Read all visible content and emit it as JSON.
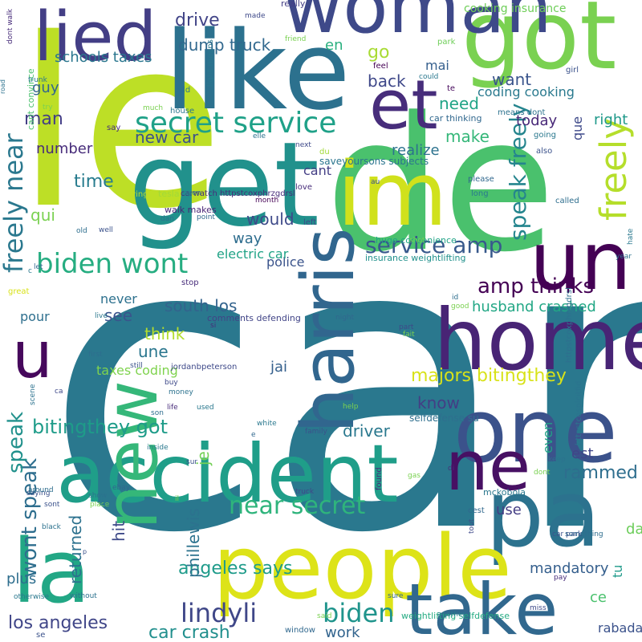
{
  "words": [
    {
      "t": "car",
      "c": "#2a788e"
    },
    {
      "t": "de",
      "c": "#4ac16d"
    },
    {
      "t": "le",
      "c": "#bddf26"
    },
    {
      "t": "get",
      "c": "#21918c"
    },
    {
      "t": "like",
      "c": "#2c718e"
    },
    {
      "t": "got",
      "c": "#7ad151"
    },
    {
      "t": "woman",
      "c": "#3e4989"
    },
    {
      "t": "lied",
      "c": "#433e85"
    },
    {
      "t": "et",
      "c": "#472d7b"
    },
    {
      "t": "im",
      "c": "#d0e11c"
    },
    {
      "t": "un",
      "c": "#440154"
    },
    {
      "t": "home",
      "c": "#482475"
    },
    {
      "t": "harris",
      "c": "#31668e"
    },
    {
      "t": "one",
      "c": "#3b528b"
    },
    {
      "t": "accident",
      "c": "#1f9e89"
    },
    {
      "t": "pa",
      "c": "#2c728e"
    },
    {
      "t": "ne",
      "c": "#471063"
    },
    {
      "t": "people",
      "c": "#dde318"
    },
    {
      "t": "new",
      "c": "#35b779"
    },
    {
      "t": "la",
      "c": "#22a785"
    },
    {
      "t": "take",
      "c": "#31688e"
    },
    {
      "t": "u",
      "c": "#46085c"
    },
    {
      "t": "freely",
      "c": "#b5de2b"
    },
    {
      "t": "speak freely",
      "c": "#25858e"
    },
    {
      "t": "secret service",
      "c": "#1fa188"
    },
    {
      "t": "biden wont",
      "c": "#26ad81"
    },
    {
      "t": "service amp",
      "c": "#38598c"
    },
    {
      "t": "amp thinks",
      "c": "#440154"
    },
    {
      "t": "freely near",
      "c": "#2a788e"
    },
    {
      "t": "near secret",
      "c": "#2fb47c"
    },
    {
      "t": "lindyli",
      "c": "#3f4788"
    },
    {
      "t": "biden",
      "c": "#1f948c"
    },
    {
      "t": "majors bitingthey",
      "c": "#d8e219"
    },
    {
      "t": "wont speak",
      "c": "#2e6e8e"
    },
    {
      "t": "speak",
      "c": "#21918c"
    },
    {
      "t": "bitingthey got",
      "c": "#1e9c89"
    },
    {
      "t": "husband crashed",
      "c": "#22a785"
    },
    {
      "t": "south los",
      "c": "#33638d"
    },
    {
      "t": "los angeles",
      "c": "#404688"
    },
    {
      "t": "angeles says",
      "c": "#1e9b8a"
    },
    {
      "t": "car crash",
      "c": "#218f8d"
    },
    {
      "t": "drive",
      "c": "#414487"
    },
    {
      "t": "dump truck",
      "c": "#31688e"
    },
    {
      "t": "schools taxes",
      "c": "#2a768e"
    },
    {
      "t": "guy",
      "c": "#32658e"
    },
    {
      "t": "en",
      "c": "#2ab07f"
    },
    {
      "t": "go",
      "c": "#a8db34"
    },
    {
      "t": "mai",
      "c": "#355f8d"
    },
    {
      "t": "back",
      "c": "#3f4889"
    },
    {
      "t": "want",
      "c": "#3a548c"
    },
    {
      "t": "need",
      "c": "#20a486"
    },
    {
      "t": "coding cooking",
      "c": "#29798e"
    },
    {
      "t": "man",
      "c": "#433e85"
    },
    {
      "t": "today",
      "c": "#482878"
    },
    {
      "t": "right",
      "c": "#1f998a"
    },
    {
      "t": "que",
      "c": "#3e4989"
    },
    {
      "t": "new car",
      "c": "#3b528b"
    },
    {
      "t": "make",
      "c": "#35b779"
    },
    {
      "t": "number",
      "c": "#472c7a"
    },
    {
      "t": "realize",
      "c": "#2c728e"
    },
    {
      "t": "time",
      "c": "#287c8e"
    },
    {
      "t": "cant",
      "c": "#433e85"
    },
    {
      "t": "qui",
      "c": "#7ad151"
    },
    {
      "t": "would",
      "c": "#3e4a89"
    },
    {
      "t": "way",
      "c": "#2e6d8e"
    },
    {
      "t": "police",
      "c": "#3a538b"
    },
    {
      "t": "electric car",
      "c": "#20a386"
    },
    {
      "t": "see",
      "c": "#3a548c"
    },
    {
      "t": "never",
      "c": "#2d718e"
    },
    {
      "t": "think",
      "c": "#b2dd2d"
    },
    {
      "t": "une",
      "c": "#2a768e"
    },
    {
      "t": "taxes coding",
      "c": "#7fd34e"
    },
    {
      "t": "jai",
      "c": "#35608d"
    },
    {
      "t": "know",
      "c": "#433e85"
    },
    {
      "t": "driver",
      "c": "#2a788e"
    },
    {
      "t": "est",
      "c": "#404588"
    },
    {
      "t": "even",
      "c": "#20a386"
    },
    {
      "t": "rammed",
      "c": "#2e6e8e"
    },
    {
      "t": "je",
      "c": "#73d056"
    },
    {
      "t": "hit",
      "c": "#3e4a89"
    },
    {
      "t": "returned",
      "c": "#2c718e"
    },
    {
      "t": "phillewis",
      "c": "#2c728e"
    },
    {
      "t": "use",
      "c": "#433d84"
    },
    {
      "t": "day",
      "c": "#6ccd5a"
    },
    {
      "t": "mandatory",
      "c": "#355f8d"
    },
    {
      "t": "tu",
      "c": "#1f9a8a"
    },
    {
      "t": "ce",
      "c": "#4ac16d"
    },
    {
      "t": "work",
      "c": "#32648e"
    },
    {
      "t": "rabadash",
      "c": "#3b528b"
    },
    {
      "t": "plus",
      "c": "#2e6e8e"
    },
    {
      "t": "pour",
      "c": "#2e6f8e"
    },
    {
      "t": "cooking insurance",
      "c": "#6ece58"
    },
    {
      "t": "saveyoursons subjects",
      "c": "#2b758e"
    },
    {
      "t": "insurance weightlifting",
      "c": "#21918c"
    },
    {
      "t": "weightlifting selfdefense",
      "c": "#25ab82"
    },
    {
      "t": "selfdefense su",
      "c": "#2e6f8e"
    },
    {
      "t": "httpstcosplcitfid",
      "c": "#2b748e"
    },
    {
      "t": "httpstcoxphrzgdrsl",
      "c": "#2e6f8e"
    },
    {
      "t": "carwatch httpstcoxphrzgdrsl",
      "c": "#472c7a"
    },
    {
      "t": "jordanbpeterson",
      "c": "#3e4989"
    },
    {
      "t": "comments defending",
      "c": "#414487"
    },
    {
      "t": "huge convenience",
      "c": "#20a386"
    },
    {
      "t": "car thinking",
      "c": "#31688e"
    },
    {
      "t": "means dont",
      "c": "#2c728e"
    },
    {
      "t": "light means",
      "c": "#2a788e"
    },
    {
      "t": "cant convince",
      "c": "#4ac16d"
    },
    {
      "t": "walk makes",
      "c": "#482576"
    },
    {
      "t": "mckobola",
      "c": "#2a778e"
    },
    {
      "t": "tesla",
      "c": "#a2da37"
    },
    {
      "t": "driving",
      "c": "#bddf26"
    },
    {
      "t": "really",
      "c": "#433e85"
    },
    {
      "t": "made",
      "c": "#3e4989"
    },
    {
      "t": "feel",
      "c": "#440154"
    },
    {
      "t": "park",
      "c": "#6ece58"
    },
    {
      "t": "friend",
      "c": "#7ad151"
    },
    {
      "t": "girl",
      "c": "#3b528b"
    },
    {
      "t": "could",
      "c": "#2a788e"
    },
    {
      "t": "told",
      "c": "#2c728e"
    },
    {
      "t": "house",
      "c": "#2a788e"
    },
    {
      "t": "much",
      "c": "#7ad151"
    },
    {
      "t": "say",
      "c": "#472c7a"
    },
    {
      "t": "also",
      "c": "#3b528b"
    },
    {
      "t": "going",
      "c": "#2a788e"
    },
    {
      "t": "next",
      "c": "#3e4989"
    },
    {
      "t": "du",
      "c": "#a2da37"
    },
    {
      "t": "elle",
      "c": "#2c728e"
    },
    {
      "t": "te",
      "c": "#46085c"
    },
    {
      "t": "please",
      "c": "#31688e"
    },
    {
      "t": "long",
      "c": "#2a788e"
    },
    {
      "t": "called",
      "c": "#2e6e8e"
    },
    {
      "t": "au",
      "c": "#3b528b"
    },
    {
      "t": "love",
      "c": "#472c7a"
    },
    {
      "t": "month",
      "c": "#440154"
    },
    {
      "t": "open",
      "c": "#2a788e"
    },
    {
      "t": "point",
      "c": "#31688e"
    },
    {
      "t": "left",
      "c": "#3e4989"
    },
    {
      "t": "shot",
      "c": "#7ad151"
    },
    {
      "t": "dan",
      "c": "#2c728e"
    },
    {
      "t": "well",
      "c": "#3b528b"
    },
    {
      "t": "let",
      "c": "#31688e"
    },
    {
      "t": "c",
      "c": "#2a788e"
    },
    {
      "t": "great",
      "c": "#d8e219"
    },
    {
      "t": "stop",
      "c": "#472c7a"
    },
    {
      "t": "year",
      "c": "#2c728e"
    },
    {
      "t": "hate",
      "c": "#2a788e"
    },
    {
      "t": "id",
      "c": "#2e6e8e"
    },
    {
      "t": "good",
      "c": "#7ad151"
    },
    {
      "t": "night",
      "c": "#31688e"
    },
    {
      "t": "part",
      "c": "#3e4989"
    },
    {
      "t": "fait",
      "c": "#7ad151"
    },
    {
      "t": "si",
      "c": "#472c7a"
    },
    {
      "t": "live",
      "c": "#2a788e"
    },
    {
      "t": "first",
      "c": "#2e6e8e"
    },
    {
      "t": "still",
      "c": "#3b528b"
    },
    {
      "t": "buy",
      "c": "#3e4989"
    },
    {
      "t": "money",
      "c": "#2c728e"
    },
    {
      "t": "life",
      "c": "#472c7a"
    },
    {
      "t": "used",
      "c": "#2a788e"
    },
    {
      "t": "son",
      "c": "#2e6e8e"
    },
    {
      "t": "help",
      "c": "#7ad151"
    },
    {
      "t": "white",
      "c": "#2a788e"
    },
    {
      "t": "family",
      "c": "#3b528b"
    },
    {
      "t": "e",
      "c": "#31688e"
    },
    {
      "t": "scene",
      "c": "#2c728e"
    },
    {
      "t": "ca",
      "c": "#3e4989"
    },
    {
      "t": "inside",
      "c": "#2a788e"
    },
    {
      "t": "sur",
      "c": "#3b528b"
    },
    {
      "t": "di",
      "c": "#472c7a"
    },
    {
      "t": "dont",
      "c": "#7ad151"
    },
    {
      "t": "keep",
      "c": "#2c728e"
    },
    {
      "t": "f",
      "c": "#2a788e"
    },
    {
      "t": "saying",
      "c": "#3b528b"
    },
    {
      "t": "around",
      "c": "#2e6e8e"
    },
    {
      "t": "ebay",
      "c": "#31688e"
    },
    {
      "t": "show",
      "c": "#2c728e"
    },
    {
      "t": "truck",
      "c": "#3e4989"
    },
    {
      "t": "found",
      "c": "#472c7a"
    },
    {
      "t": "gas",
      "c": "#7ad151"
    },
    {
      "t": "sont",
      "c": "#3b528b"
    },
    {
      "t": "place",
      "c": "#7ad151"
    },
    {
      "t": "par",
      "c": "#2a788e"
    },
    {
      "t": "il",
      "c": "#7ad151"
    },
    {
      "t": "cest",
      "c": "#31688e"
    },
    {
      "t": "black",
      "c": "#2c728e"
    },
    {
      "t": "tout",
      "c": "#3e4989"
    },
    {
      "t": "something",
      "c": "#2e6e8e"
    },
    {
      "t": "car park",
      "c": "#3b528b"
    },
    {
      "t": "pay",
      "c": "#472c7a"
    },
    {
      "t": "otherwise",
      "c": "#2a788e"
    },
    {
      "t": "without",
      "c": "#2c728e"
    },
    {
      "t": "sure",
      "c": "#31688e"
    },
    {
      "t": "miss",
      "c": "#3e4989"
    },
    {
      "t": "another",
      "c": "#2a788e"
    },
    {
      "t": "said",
      "c": "#7ad151"
    },
    {
      "t": "se",
      "c": "#3b528b"
    },
    {
      "t": "window",
      "c": "#31688e"
    },
    {
      "t": "road",
      "c": "#2c728e"
    },
    {
      "t": "dont walk",
      "c": "#472c7a"
    },
    {
      "t": "trunk",
      "c": "#2a788e"
    },
    {
      "t": "try",
      "c": "#7ad151"
    },
    {
      "t": "old",
      "c": "#2e6e8e"
    },
    {
      "t": "p",
      "c": "#3b528b"
    },
    {
      "t": "w",
      "c": "#d8e219"
    }
  ]
}
